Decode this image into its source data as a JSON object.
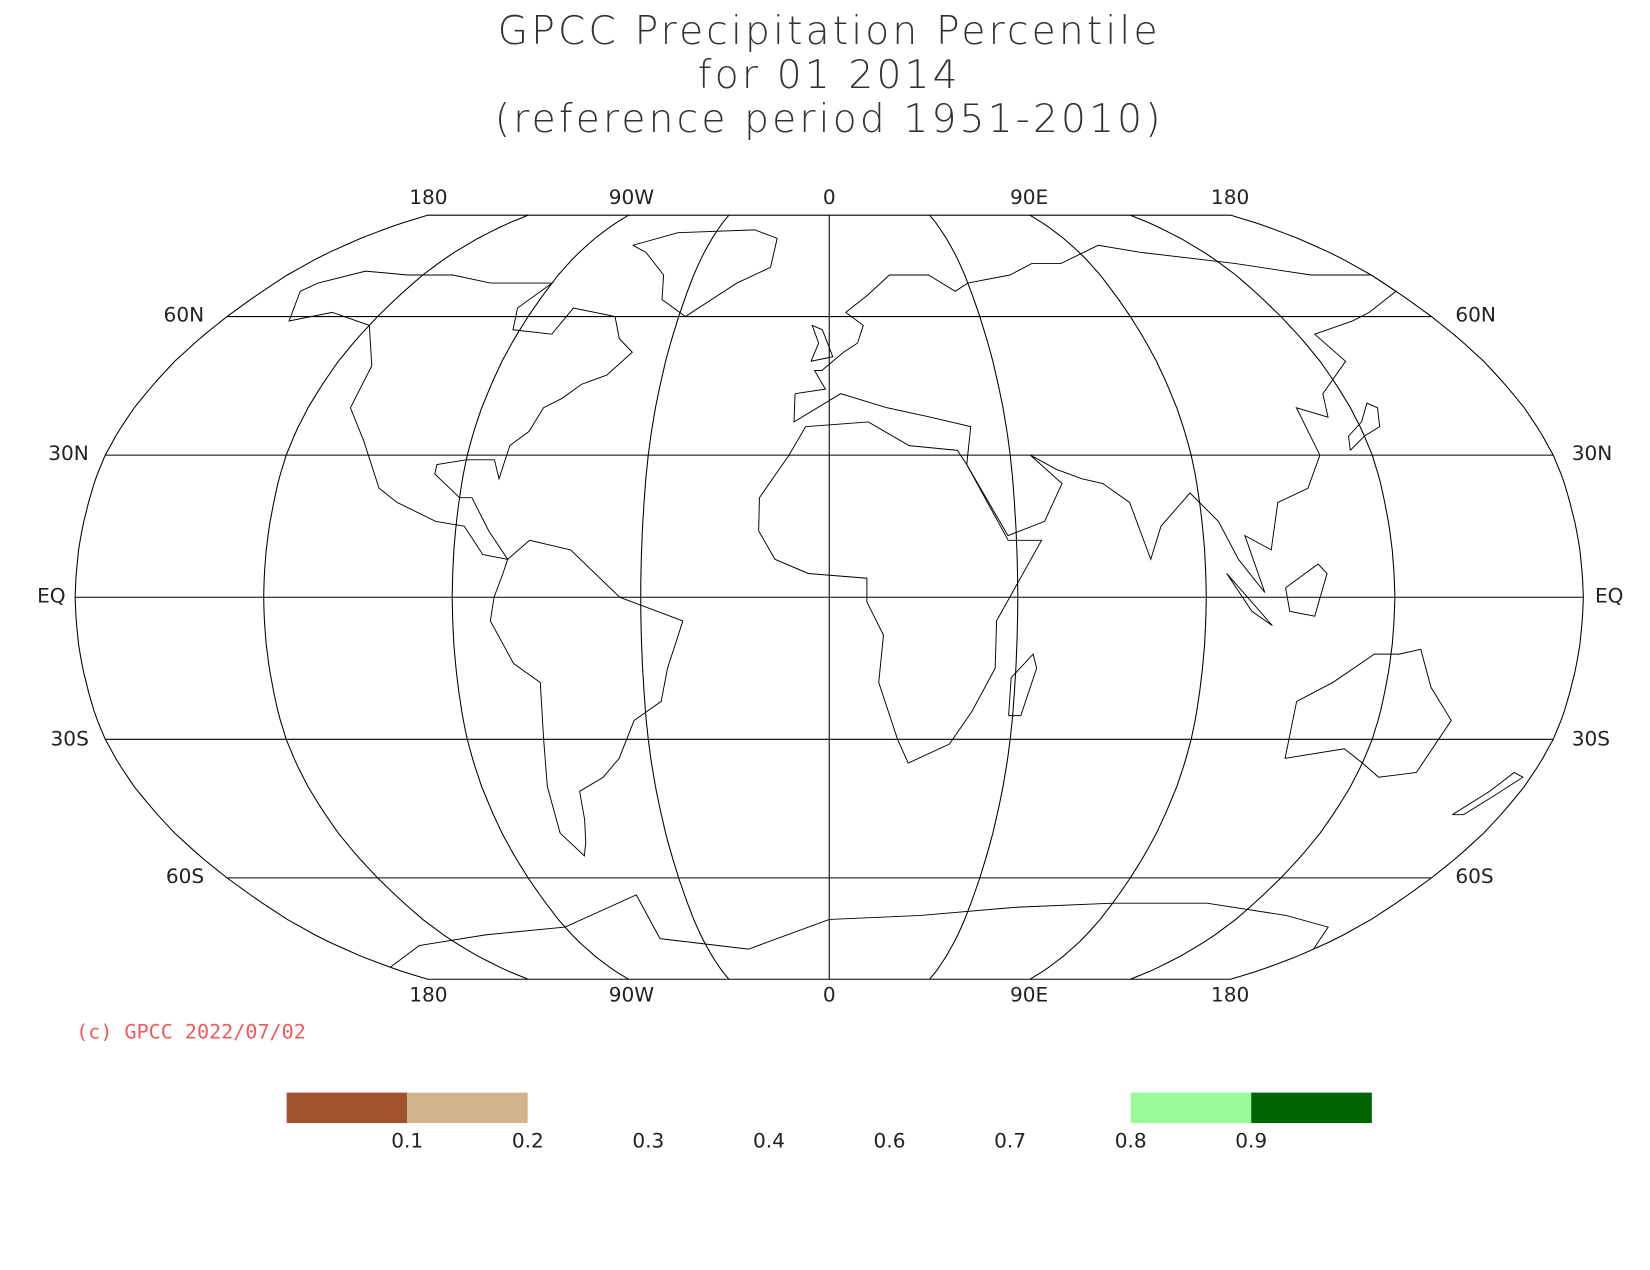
{
  "title": [
    "GPCC Precipitation Percentile",
    "for 01 2014",
    "(reference period 1951-2010)"
  ],
  "map": {
    "lon_labels": [
      "180",
      "90W",
      "0",
      "90E",
      "180"
    ],
    "lat_labels_left": [
      "60N",
      "30N",
      "EQ",
      "30S",
      "60S"
    ],
    "lat_labels_right": [
      "60N",
      "30N",
      "EQ",
      "30S",
      "60S"
    ]
  },
  "copyright": "(c) GPCC 2022/07/02",
  "legend": {
    "colors": [
      "#a0522d",
      "#d2b48c",
      "#ffffff",
      "#ffffff",
      "#ffffff",
      "#ffffff",
      "#ffffff",
      "#98fb98",
      "#006400"
    ],
    "labels": [
      "0.1",
      "0.2",
      "0.3",
      "0.4",
      "0.6",
      "0.7",
      "0.8",
      "0.9"
    ]
  }
}
